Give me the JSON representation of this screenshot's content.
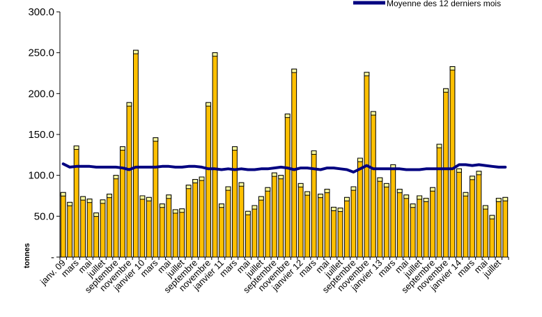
{
  "chart_data": {
    "type": "bar",
    "ylabel": "tonnes",
    "ylim": [
      0,
      300
    ],
    "yticks": [
      {
        "value": 300,
        "label": "300.0"
      },
      {
        "value": 250,
        "label": "250.0"
      },
      {
        "value": 200,
        "label": "200.0"
      },
      {
        "value": 150,
        "label": "150.0"
      },
      {
        "value": 100,
        "label": "100.0"
      },
      {
        "value": 50,
        "label": "50.0"
      },
      {
        "value": 0,
        "label": "-"
      }
    ],
    "x_labels": [
      "janv. 09",
      "mars",
      "mai",
      "juillet",
      "septembre",
      "novembre",
      "janvier 10",
      "mars",
      "mai",
      "juillet",
      "septembre",
      "novembre",
      "janvier 11",
      "mars",
      "mai",
      "juillet",
      "septembre",
      "novembre",
      "janvier 12",
      "mars",
      "mai",
      "juillet",
      "septembre",
      "novembre",
      "janvier 13",
      "mars",
      "mai",
      "juillet",
      "septembre",
      "novembre",
      "janvier 14",
      "mars",
      "mai",
      "juillet"
    ],
    "series": [
      {
        "kind": "bar",
        "values": [
          79,
          67,
          136,
          74,
          71,
          54,
          70,
          77,
          100,
          135,
          189,
          253,
          75,
          73,
          146,
          65,
          76,
          58,
          59,
          88,
          95,
          98,
          189,
          250,
          65,
          86,
          135,
          91,
          56,
          63,
          74,
          85,
          103,
          100,
          175,
          230,
          90,
          80,
          130,
          77,
          83,
          61,
          60,
          73,
          86,
          121,
          226,
          178,
          97,
          90,
          113,
          83,
          76,
          65,
          75,
          72,
          85,
          138,
          206,
          233,
          108,
          79,
          99,
          105,
          63,
          51,
          72,
          73
        ]
      },
      {
        "kind": "line",
        "name": "Moyenne des 12 derniers mois",
        "values": [
          114,
          110,
          111,
          111,
          111,
          110,
          110,
          110,
          110,
          109,
          107,
          110,
          110,
          110,
          110,
          111,
          111,
          110,
          110,
          111,
          111,
          110,
          108,
          108,
          107,
          108,
          107,
          108,
          107,
          107,
          108,
          108,
          109,
          110,
          109,
          107,
          109,
          109,
          108,
          107,
          109,
          109,
          108,
          107,
          104,
          108,
          112,
          108,
          108,
          108,
          108,
          108,
          107,
          107,
          107,
          108,
          108,
          108,
          108,
          108,
          113,
          113,
          112,
          113,
          112,
          111,
          110,
          110
        ]
      }
    ],
    "colors": {
      "bar_fill": "#ffc000",
      "bar_top": "#ffffa0",
      "bar_stroke": "#000000",
      "line": "#000080"
    },
    "legend_position": "top-right"
  }
}
